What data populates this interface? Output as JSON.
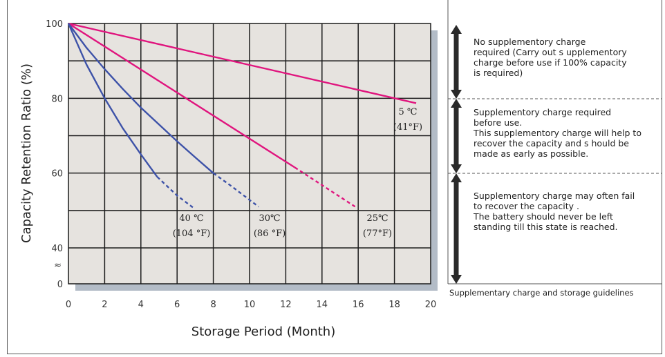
{
  "chart_data": {
    "type": "line",
    "xlabel": "Storage  Period (Month)",
    "ylabel": "Capacity  Retention  Ratio  (%)",
    "xlim": [
      0,
      20
    ],
    "ylim": [
      40,
      100
    ],
    "x_ticks": [
      "0",
      "2",
      "4",
      "6",
      "8",
      "10",
      "12",
      "14",
      "16",
      "18",
      "20"
    ],
    "y_ticks": [
      "100",
      "80",
      "60",
      "40"
    ],
    "y_zero_label": "0",
    "axis_break": "≈",
    "grid": true,
    "series": [
      {
        "name": "5℃ (41°F)",
        "label_top": "5 ℃",
        "label_bottom": "(41°F)",
        "color": "#e0157e",
        "solid": [
          [
            0,
            100
          ],
          [
            19.2,
            78.7
          ]
        ],
        "dashed": []
      },
      {
        "name": "25℃ (77°F)",
        "label_top": "25℃",
        "label_bottom": "(77°F)",
        "color": "#e0157e",
        "solid": [
          [
            0,
            100
          ],
          [
            12.5,
            61.5
          ]
        ],
        "dashed": [
          [
            12.5,
            61.5
          ],
          [
            15.9,
            50.8
          ]
        ]
      },
      {
        "name": "30℃ (86°F)",
        "label_top": "30℃",
        "label_bottom": "(86 °F)",
        "color": "#3d52a8",
        "solid": [
          [
            0,
            100
          ],
          [
            1,
            93.5
          ],
          [
            2,
            87.8
          ],
          [
            3,
            82.5
          ],
          [
            4,
            77.5
          ],
          [
            5,
            73
          ],
          [
            6,
            68.5
          ],
          [
            7,
            64.2
          ],
          [
            8,
            60
          ]
        ],
        "dashed": [
          [
            8,
            60
          ],
          [
            9,
            56.5
          ],
          [
            10.5,
            51
          ]
        ]
      },
      {
        "name": "40℃ (104°F)",
        "label_top": "40 ℃",
        "label_bottom": "(104 °F)",
        "color": "#3d52a8",
        "solid": [
          [
            0,
            100
          ],
          [
            0.5,
            94.5
          ],
          [
            1,
            89
          ],
          [
            2,
            80
          ],
          [
            3,
            72
          ],
          [
            4,
            65
          ],
          [
            4.9,
            59
          ]
        ],
        "dashed": [
          [
            4.9,
            59
          ],
          [
            6,
            54
          ],
          [
            6.9,
            50.7
          ]
        ]
      }
    ]
  },
  "guidelines": {
    "caption": "Supplementary  charge  and  storage  guidelines",
    "zones": [
      {
        "text": "No  supplementory  charge\nrequired (Carry  out s upplementory\ncharge  before  use  if  100%  capacity\nis required)"
      },
      {
        "text": "Supplementory  charge  required\nbefore use.\nThis  supplementory  charge  will help  to\nrecover   the capacity  and s hould be\nmade  as early  as possible."
      },
      {
        "text": "Supplementory  charge  may  often  fail\nto recover  the capacity .\nThe  battery  should  never  be  left\nstanding  till this state  is reached."
      }
    ]
  }
}
